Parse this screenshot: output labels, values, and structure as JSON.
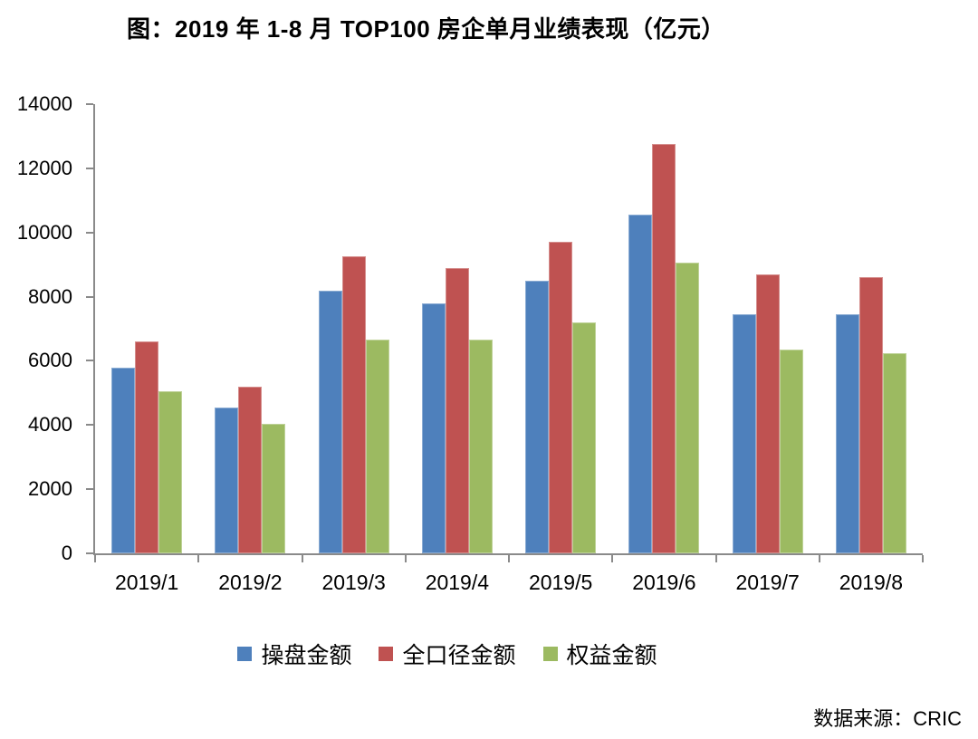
{
  "title": "图：2019 年 1-8 月 TOP100 房企单月业绩表现（亿元）",
  "source": "数据来源：CRIC",
  "colors": {
    "axis": "#8A8A8A",
    "text": "#000000",
    "background": "#FFFFFF",
    "series_blue": "#4E80BC",
    "series_red": "#BF5251",
    "series_green": "#9CBA61"
  },
  "chart_data": {
    "type": "bar",
    "title": "图：2019 年 1-8 月 TOP100 房企单月业绩表现（亿元）",
    "xlabel": "",
    "ylabel": "",
    "categories": [
      "2019/1",
      "2019/2",
      "2019/3",
      "2019/4",
      "2019/5",
      "2019/6",
      "2019/7",
      "2019/8"
    ],
    "series": [
      {
        "name": "操盘金额",
        "color": "#4E80BC",
        "values": [
          5800,
          4550,
          8200,
          7800,
          8500,
          10550,
          7450,
          7450
        ]
      },
      {
        "name": "全口径金额",
        "color": "#BF5251",
        "values": [
          6600,
          5200,
          9250,
          8900,
          9700,
          12750,
          8700,
          8600
        ]
      },
      {
        "name": "权益金额",
        "color": "#9CBA61",
        "values": [
          5050,
          4050,
          6650,
          6650,
          7200,
          9050,
          6350,
          6250
        ]
      }
    ],
    "ylim": [
      0,
      14000
    ],
    "ytick_step": 2000,
    "grid": false,
    "legend_position": "bottom"
  }
}
